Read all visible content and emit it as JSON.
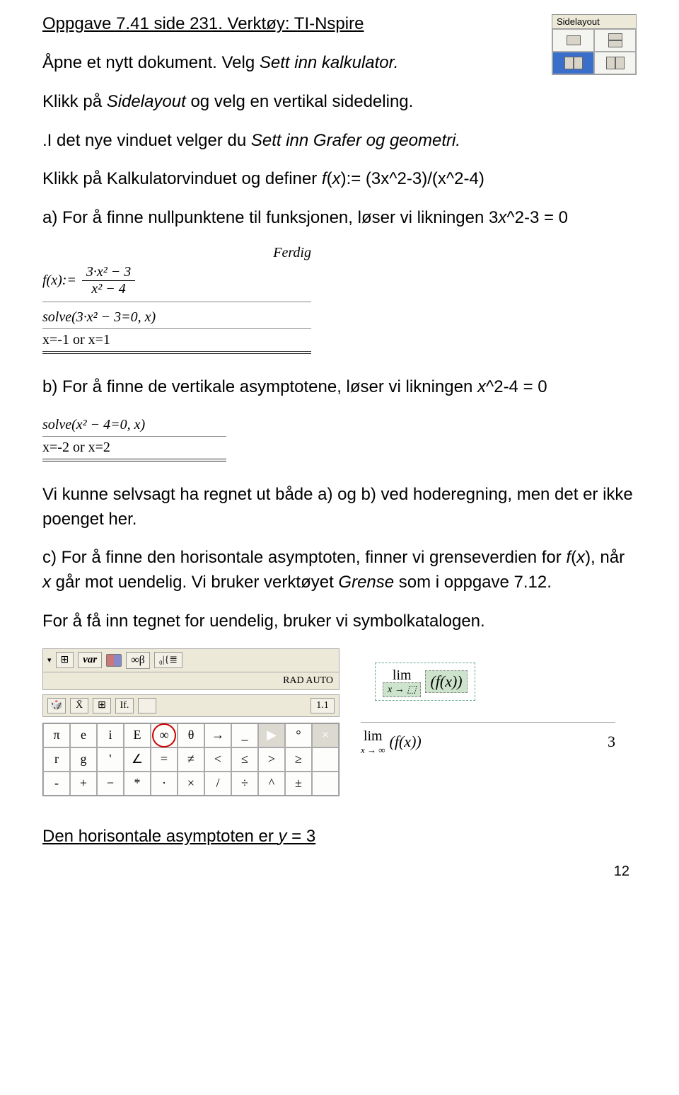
{
  "title": "Oppgave 7.41 side 231. Verktøy: TI-Nspire",
  "p1_a": "Åpne et nytt dokument. Velg ",
  "p1_b": "Sett inn kalkulator.",
  "p2_a": "Klikk på ",
  "p2_b": "Sidelayout",
  "p2_c": " og velg en vertikal sidedeling.",
  "p3_a": ".I det nye vinduet velger du ",
  "p3_b": "Sett inn Grafer og geometri.",
  "p4_a": "Klikk på Kalkulatorvinduet og definer ",
  "p4_b": "f",
  "p4_c": "(",
  "p4_d": "x",
  "p4_e": "):= (3x^2-3)/(x^2-4)",
  "p5_a": "a) For å finne nullpunktene til funksjonen, løser vi likningen 3",
  "p5_b": "x",
  "p5_c": "^2-3 = 0",
  "cas1": {
    "ferdig": "Ferdig",
    "lhs": "f(x):=",
    "num": "3·x² − 3",
    "den": "x² − 4",
    "solve": "solve(3·x² − 3=0, x)",
    "result": "x=-1 or x=1"
  },
  "p6_a": "b) For å finne de vertikale asymptotene, løser vi likningen ",
  "p6_b": "x",
  "p6_c": "^2-4 = 0",
  "cas2": {
    "solve": "solve(x² − 4=0, x)",
    "result": "x=-2 or x=2"
  },
  "p7": "Vi kunne selvsagt ha regnet ut både a) og b) ved hoderegning, men det er ikke poenget her.",
  "p8_a": "c) For å finne den horisontale asymptoten, finner vi grenseverdien for ",
  "p8_b": "f",
  "p8_c": "(",
  "p8_d": "x",
  "p8_e": "), når ",
  "p8_f": "x",
  "p8_g": " går mot uendelig. Vi bruker verktøyet ",
  "p8_h": "Grense",
  "p8_i": " som i oppgave 7.12.",
  "p9": "For å få inn tegnet for uendelig, bruker vi symbolkatalogen.",
  "sidelayout_label": "Sidelayout",
  "toolbar": {
    "var": "var",
    "inf": "∞β",
    "glyph": "₀|{≣",
    "rad": "RAD AUTO",
    "mid": [
      "🎲",
      "X̄",
      "⊞",
      "If.",
      "",
      "1.1"
    ]
  },
  "symgrid": [
    [
      "π",
      "e",
      "i",
      "E",
      "∞",
      "θ",
      "→",
      "_",
      "▶",
      "°",
      "×"
    ],
    [
      "r",
      "g",
      "'",
      "∠",
      "=",
      "≠",
      "<",
      "≤",
      ">",
      "≥",
      ""
    ],
    [
      "-",
      "+",
      "−",
      "*",
      "·",
      "×",
      "/",
      "÷",
      "^",
      "±",
      ""
    ]
  ],
  "circled_col": 4,
  "lim": {
    "label_top": "lim",
    "label_bot1": "x → ⬚",
    "fn": "(f(x))",
    "label_bot2": "x → ∞",
    "result": "3"
  },
  "final_a": "Den horisontale asymptoten er ",
  "final_b": "y",
  "final_c": " = 3",
  "pagenum": "12"
}
